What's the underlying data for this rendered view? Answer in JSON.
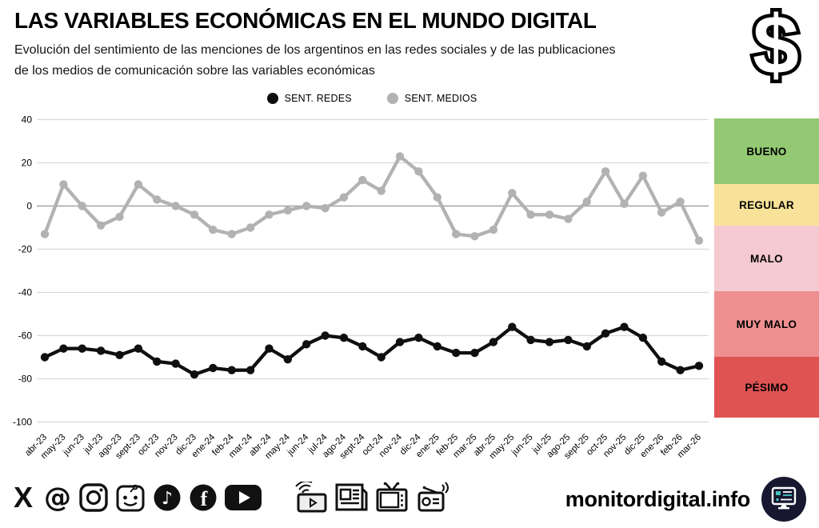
{
  "header": {
    "title": "LAS VARIABLES ECONÓMICAS EN EL MUNDO DIGITAL",
    "subtitle_line1": "Evolución del sentimiento de las menciones de los argentinos en las redes sociales y de las publicaciones",
    "subtitle_line2": "de los medios de comunicación sobre las variables económicas",
    "dollar_icon": "$"
  },
  "chart_data": {
    "type": "line",
    "title": "",
    "xlabel": "",
    "ylabel": "",
    "categories": [
      "abr-23",
      "may-23",
      "jun-23",
      "jul-23",
      "ago-23",
      "sept-23",
      "oct-23",
      "nov-23",
      "dic-23",
      "ene-24",
      "feb-24",
      "mar-24",
      "abr-24",
      "may-24",
      "jun-24",
      "jul-24",
      "ago-24",
      "sept-24",
      "oct-24",
      "nov-24",
      "dic-24",
      "ene-25",
      "feb-25",
      "mar-25",
      "abr-25",
      "may-25",
      "jun-25",
      "jul-25",
      "ago-25",
      "sept-25",
      "oct-25",
      "nov-25",
      "dic-25",
      "ene-26",
      "feb-26",
      "mar-26"
    ],
    "series": [
      {
        "name": "SENT. REDES",
        "color": "#0f0f0f",
        "values": [
          -70,
          -66,
          -66,
          -67,
          -69,
          -66,
          -72,
          -73,
          -78,
          -75,
          -76,
          -76,
          -66,
          -71,
          -64,
          -60,
          -61,
          -65,
          -70,
          -63,
          -61,
          -65,
          -68,
          -68,
          -63,
          -56,
          -62,
          -63,
          -62,
          -65,
          -59,
          -56,
          -61,
          -72,
          -76,
          -74
        ]
      },
      {
        "name": "SENT. MEDIOS",
        "color": "#b2b2b2",
        "values": [
          -13,
          10,
          0,
          -9,
          -5,
          10,
          3,
          0,
          -4,
          -11,
          -13,
          -10,
          -4,
          -2,
          0,
          -1,
          4,
          12,
          7,
          23,
          16,
          4,
          -13,
          -14,
          -11,
          6,
          -4,
          -4,
          -6,
          2,
          16,
          1,
          14,
          -3,
          2,
          -16
        ]
      }
    ],
    "ylim": [
      -100,
      40
    ],
    "yticks": [
      40,
      20,
      0,
      -20,
      -40,
      -60,
      -80,
      -100
    ],
    "grid": true,
    "legend_position": "top-center",
    "grid_color": "#d9d9d9",
    "zero_line_color": "#a3a3a3"
  },
  "scale": {
    "items": [
      {
        "label": "BUENO",
        "color": "#94c973"
      },
      {
        "label": "REGULAR",
        "color": "#f8e29a"
      },
      {
        "label": "MALO",
        "color": "#f5c9d0"
      },
      {
        "label": "MUY MALO",
        "color": "#ef8f90"
      },
      {
        "label": "PÉSIMO",
        "color": "#e05353"
      }
    ]
  },
  "footer": {
    "site": "monitordigital.info",
    "social_icons": [
      "x-icon",
      "threads-icon",
      "instagram-icon",
      "reddit-icon",
      "tiktok-icon",
      "facebook-icon",
      "youtube-icon"
    ],
    "media_icons": [
      "streaming-icon",
      "news-icon",
      "tv-icon",
      "radio-icon"
    ],
    "logo": "monitor-icon",
    "logo_bg": "#171730",
    "logo_accent": "#45c4bc"
  }
}
